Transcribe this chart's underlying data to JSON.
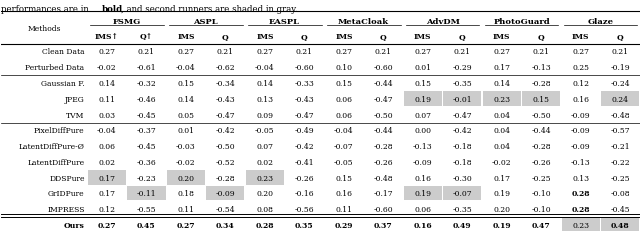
{
  "caption_plain": "performances are in ",
  "caption_bold": "bold",
  "caption_rest": ", and second runners are shaded in gray.",
  "col_groups": [
    "FSMG",
    "ASPL",
    "EASPL",
    "MetaCloak",
    "AdvDM",
    "PhotoGuard",
    "Glaze"
  ],
  "sub_labels": [
    [
      "IMS↑",
      "Q↑"
    ],
    [
      "IMS",
      "Q"
    ],
    [
      "IMS",
      "Q"
    ],
    [
      "IMS",
      "Q"
    ],
    [
      "IMS",
      "Q"
    ],
    [
      "IMS",
      "Q"
    ],
    [
      "IMS",
      "Q"
    ]
  ],
  "rows": [
    {
      "name": "Clean Data",
      "vals": [
        0.27,
        0.21,
        0.27,
        0.21,
        0.27,
        0.21,
        0.27,
        0.21,
        0.27,
        0.21,
        0.27,
        0.21,
        0.27,
        0.21
      ],
      "bold": [],
      "gray": []
    },
    {
      "name": "Perturbed Data",
      "vals": [
        -0.02,
        -0.61,
        -0.04,
        -0.62,
        -0.04,
        -0.6,
        0.1,
        -0.6,
        0.01,
        -0.29,
        0.17,
        -0.13,
        0.25,
        -0.19
      ],
      "bold": [],
      "gray": []
    },
    {
      "name": "Gaussian F.",
      "vals": [
        0.14,
        -0.32,
        0.15,
        -0.34,
        0.14,
        -0.33,
        0.15,
        -0.44,
        0.15,
        -0.35,
        0.14,
        -0.28,
        0.12,
        -0.24
      ],
      "bold": [],
      "gray": []
    },
    {
      "name": "JPEG",
      "vals": [
        0.11,
        -0.46,
        0.14,
        -0.43,
        0.13,
        -0.43,
        0.06,
        -0.47,
        0.19,
        -0.01,
        0.23,
        0.15,
        0.16,
        0.24
      ],
      "bold": [],
      "gray": [
        8,
        9,
        10,
        11,
        13
      ]
    },
    {
      "name": "TVM",
      "vals": [
        0.03,
        -0.45,
        0.05,
        -0.47,
        0.09,
        -0.47,
        0.06,
        -0.5,
        0.07,
        -0.47,
        0.04,
        -0.5,
        -0.09,
        -0.48
      ],
      "bold": [],
      "gray": []
    },
    {
      "name": "PixelDiffPure",
      "vals": [
        -0.04,
        -0.37,
        0.01,
        -0.42,
        -0.05,
        -0.49,
        -0.04,
        -0.44,
        0.0,
        -0.42,
        0.04,
        -0.44,
        -0.09,
        -0.57
      ],
      "bold": [],
      "gray": []
    },
    {
      "name": "LatentDiffPure-Ø",
      "vals": [
        0.06,
        -0.45,
        -0.03,
        -0.5,
        0.07,
        -0.42,
        -0.07,
        -0.28,
        -0.13,
        -0.18,
        0.04,
        -0.28,
        -0.09,
        -0.21
      ],
      "bold": [],
      "gray": []
    },
    {
      "name": "LatentDiffPure",
      "vals": [
        0.02,
        -0.36,
        -0.02,
        -0.52,
        0.02,
        -0.41,
        -0.05,
        -0.26,
        -0.09,
        -0.18,
        -0.02,
        -0.26,
        -0.13,
        -0.22
      ],
      "bold": [],
      "gray": []
    },
    {
      "name": "DDSPure",
      "vals": [
        0.17,
        -0.23,
        0.2,
        -0.28,
        0.23,
        -0.26,
        0.15,
        -0.48,
        0.16,
        -0.3,
        0.17,
        -0.25,
        0.13,
        -0.25
      ],
      "bold": [],
      "gray": [
        0,
        2,
        4
      ]
    },
    {
      "name": "GrIDPure",
      "vals": [
        0.17,
        -0.11,
        0.18,
        -0.09,
        0.2,
        -0.16,
        0.16,
        -0.17,
        0.19,
        -0.07,
        0.19,
        -0.1,
        0.28,
        -0.08
      ],
      "bold": [
        12
      ],
      "gray": [
        1,
        3,
        8,
        9
      ]
    },
    {
      "name": "IMPRESS",
      "vals": [
        0.12,
        -0.55,
        0.11,
        -0.54,
        0.08,
        -0.56,
        0.11,
        -0.6,
        0.06,
        -0.35,
        0.2,
        -0.1,
        0.28,
        -0.45
      ],
      "bold": [
        12
      ],
      "gray": []
    },
    {
      "name": "Ours",
      "vals": [
        0.27,
        0.45,
        0.27,
        0.34,
        0.28,
        0.35,
        0.29,
        0.37,
        0.16,
        0.49,
        0.19,
        0.47,
        0.23,
        0.48
      ],
      "bold": [
        0,
        1,
        2,
        3,
        4,
        5,
        6,
        7,
        8,
        9,
        10,
        11,
        13
      ],
      "gray": [
        12,
        13
      ]
    }
  ],
  "separator_after": [
    1,
    4,
    10
  ],
  "gray_color": "#cccccc",
  "font_size": 5.5
}
